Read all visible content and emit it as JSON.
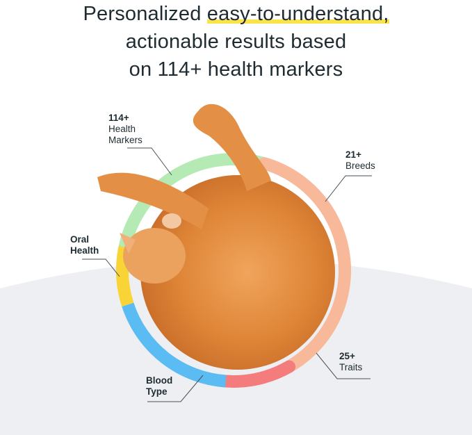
{
  "headline": {
    "line1_before": "Personalized ",
    "line1_highlight": "easy-to-understand,",
    "line2": "actionable results based",
    "line3": "on 114+ health markers"
  },
  "labels": {
    "health_markers": {
      "count": "114+",
      "text1": "Health",
      "text2": "Markers"
    },
    "breeds": {
      "count": "21+",
      "text": "Breeds"
    },
    "oral_health": {
      "line1": "Oral",
      "line2": "Health"
    },
    "blood_type": {
      "line1": "Blood",
      "line2": "Type"
    },
    "traits": {
      "count": "25+",
      "text": "Traits"
    }
  },
  "colors": {
    "highlight": "#fbe44a",
    "health_markers": "#b5eab4",
    "breeds": "#f8b99b",
    "traits": "#f47c7c",
    "blood_type": "#5bbcf3",
    "oral_health": "#f9d437",
    "background_shape": "#eeeff2",
    "cat": "#e0873a"
  }
}
